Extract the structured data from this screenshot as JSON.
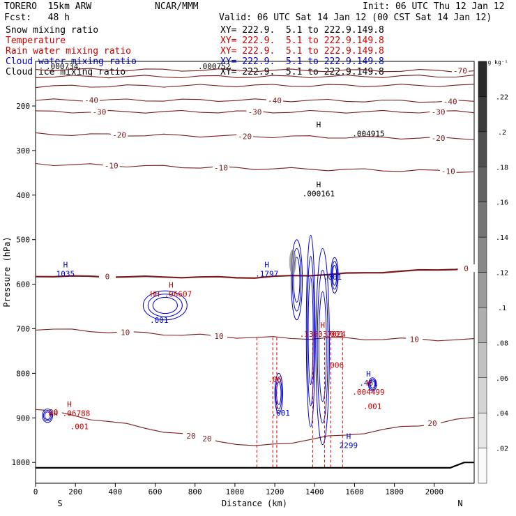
{
  "header": {
    "model": "TORERO  15km ARW",
    "center": "NCAR/MMM",
    "init": "Init: 06 UTC Thu 12 Jan 12",
    "fcst": "Fcst:   48 h",
    "valid": "Valid: 06 UTC Sat 14 Jan 12 (00 CST Sat 14 Jan 12)"
  },
  "fields": [
    {
      "name": "Snow mixing ratio",
      "color": "#000000",
      "xy": "XY= 222.9.  5.1 to 222.9.149.8"
    },
    {
      "name": "Temperature",
      "color": "#cc0000",
      "xy": "XY= 222.9.  5.1 to 222.9.149.8"
    },
    {
      "name": "Rain water mixing ratio",
      "color": "#cc0000",
      "xy": "XY= 222.9.  5.1 to 222.9.149.8"
    },
    {
      "name": "Cloud water mixing ratio",
      "color": "#0000cc",
      "xy": "XY= 222.9.  5.1 to 222.9.149.8"
    },
    {
      "name": "Cloud ice mixing ratio",
      "color": "#000000",
      "xy": "XY= 222.9.  5.1 to 222.9.149.8"
    }
  ],
  "overlap_labels": [
    ".000734",
    ".000752"
  ],
  "colorbar": {
    "unit": "g kg⁻¹",
    "ticks": [
      ".22",
      ".2",
      ".18",
      ".16",
      ".14",
      ".12",
      ".1",
      ".08",
      ".06",
      ".04",
      ".02"
    ],
    "values": [
      0.22,
      0.2,
      0.18,
      0.16,
      0.14,
      0.12,
      0.1,
      0.08,
      0.06,
      0.04,
      0.02
    ],
    "range": [
      0,
      0.24
    ]
  },
  "chart_data": {
    "type": "contour",
    "xlabel": "Distance (km)",
    "ylabel": "Pressure (hPa)",
    "xlim": [
      0,
      2200
    ],
    "ylim": [
      1050,
      100
    ],
    "x_ticks": [
      0,
      200,
      400,
      600,
      800,
      1000,
      1200,
      1400,
      1600,
      1800,
      2000
    ],
    "y_ticks": [
      200,
      300,
      400,
      500,
      600,
      700,
      800,
      900,
      1000
    ],
    "end_labels": {
      "left": "S",
      "right": "N"
    },
    "temperature_isotherms": [
      {
        "t": -70,
        "p": [
          118,
          120,
          121
        ],
        "labels": [
          {
            "x": 2130,
            "text": "-70"
          }
        ]
      },
      {
        "t": -60,
        "p": [
          134,
          134,
          133
        ]
      },
      {
        "t": -50,
        "p": [
          156,
          154,
          154
        ]
      },
      {
        "t": -40,
        "p": [
          187,
          187,
          190
        ],
        "labels": [
          {
            "x": 280,
            "text": "-40"
          },
          {
            "x": 1200,
            "text": "-40"
          },
          {
            "x": 2080,
            "text": "-40"
          }
        ]
      },
      {
        "t": -30,
        "p": [
          213,
          213,
          213
        ],
        "labels": [
          {
            "x": 320,
            "text": "-30"
          },
          {
            "x": 1100,
            "text": "-30"
          },
          {
            "x": 2020,
            "text": "-30"
          }
        ]
      },
      {
        "t": -20,
        "p": [
          263,
          268,
          273
        ],
        "labels": [
          {
            "x": 420,
            "text": "-20"
          },
          {
            "x": 1050,
            "text": "-20"
          },
          {
            "x": 2020,
            "text": "-20"
          }
        ]
      },
      {
        "t": -10,
        "p": [
          330,
          340,
          347
        ],
        "labels": [
          {
            "x": 380,
            "text": "-10"
          },
          {
            "x": 930,
            "text": "-10"
          },
          {
            "x": 2070,
            "text": "-10"
          }
        ]
      },
      {
        "t": 0,
        "p": [
          582,
          585,
          564
        ],
        "labels": [
          {
            "x": 360,
            "text": "0"
          },
          {
            "x": 2160,
            "text": "0"
          }
        ]
      },
      {
        "t": 10,
        "p": [
          700,
          720,
          725
        ],
        "labels": [
          {
            "x": 450,
            "text": "10"
          },
          {
            "x": 920,
            "text": "10"
          },
          {
            "x": 1900,
            "text": "10"
          }
        ]
      },
      {
        "t": 20,
        "p": [
          880,
          965,
          900
        ],
        "labels": [
          {
            "x": 90,
            "text": "20"
          },
          {
            "x": 780,
            "text": "20"
          },
          {
            "x": 860,
            "text": "20"
          },
          {
            "x": 1990,
            "text": "20"
          }
        ]
      }
    ],
    "annotations": [
      {
        "kind": "H",
        "x": 1420,
        "p": 260,
        "value": ".004915",
        "color": "#000000",
        "text_x": 1670
      },
      {
        "kind": "H",
        "x": 1420,
        "p": 395,
        "value": ".000161",
        "color": "#000000"
      },
      {
        "kind": "H",
        "x": 150,
        "p": 575,
        "value": "1035",
        "color": "#0000cc"
      },
      {
        "kind": "H",
        "x": 680,
        "p": 620,
        "value": "HH .06607",
        "color": "#cc0000"
      },
      {
        "kind": "H",
        "x": 1160,
        "p": 575,
        "value": ".1797",
        "color": "#0000cc"
      },
      {
        "kind": "H",
        "x": 1440,
        "p": 710,
        "value": ".136037624",
        "color": "#cc0000"
      },
      {
        "kind": "H",
        "x": 1670,
        "p": 820,
        "value": ".461",
        "color": "#0000cc"
      },
      {
        "kind": "H",
        "x": 1670,
        "p": 840,
        "value": ".004499",
        "color": "#cc0000"
      },
      {
        "kind": "H",
        "x": 170,
        "p": 888,
        "value": "HH .06788",
        "color": "#cc0000"
      },
      {
        "kind": "H",
        "x": 1570,
        "p": 960,
        "value": "2299",
        "color": "#0000cc"
      }
    ],
    "value_labels": [
      {
        "x": 620,
        "p": 687,
        "text": ".001",
        "color": "#0000cc"
      },
      {
        "x": 1490,
        "p": 590,
        "text": ".001",
        "color": "#0000cc"
      },
      {
        "x": 1500,
        "p": 718,
        "text": ".001",
        "color": "#cc0000"
      },
      {
        "x": 1500,
        "p": 788,
        "text": ".006",
        "color": "#cc0000"
      },
      {
        "x": 1200,
        "p": 820,
        "text": ".06",
        "color": "#cc0000"
      },
      {
        "x": 1230,
        "p": 895,
        "text": ".001",
        "color": "#0000cc"
      },
      {
        "x": 1690,
        "p": 880,
        "text": ".001",
        "color": "#cc0000"
      },
      {
        "x": 220,
        "p": 925,
        "text": ".001",
        "color": "#cc0000"
      }
    ]
  }
}
